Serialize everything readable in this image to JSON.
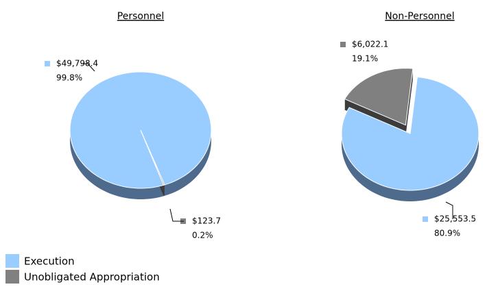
{
  "chart_data": [
    {
      "type": "pie",
      "title": "Personnel",
      "categories": [
        "Execution",
        "Unobligated Appropriation"
      ],
      "values": [
        49798.4,
        123.7
      ],
      "value_labels": [
        "$49,798.4",
        "$123.7"
      ],
      "percents": [
        99.8,
        0.2
      ],
      "percent_labels": [
        "99.8%",
        "0.2%"
      ],
      "colors": [
        "#99ccff",
        "#808080"
      ]
    },
    {
      "type": "pie",
      "title": "Non-Personnel",
      "categories": [
        "Execution",
        "Unobligated Appropriation"
      ],
      "values": [
        25553.5,
        6022.1
      ],
      "value_labels": [
        "$25,553.5",
        "$6,022.1"
      ],
      "percents": [
        80.9,
        19.1
      ],
      "percent_labels": [
        "80.9%",
        "19.1%"
      ],
      "colors": [
        "#99ccff",
        "#808080"
      ]
    }
  ],
  "legend": {
    "items": [
      {
        "name": "Execution",
        "color": "#99ccff"
      },
      {
        "name": "Unobligated Appropriation",
        "color": "#808080"
      }
    ]
  }
}
